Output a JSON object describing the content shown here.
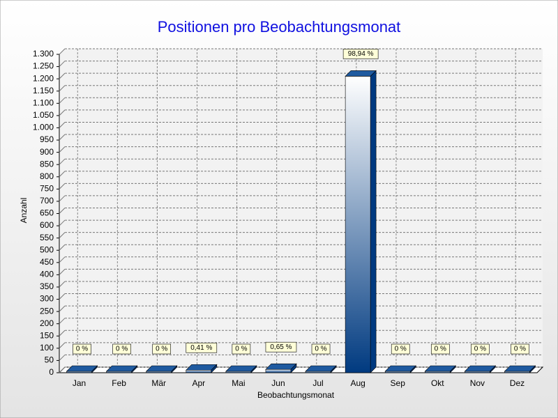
{
  "chart_data": {
    "type": "bar3d",
    "title": "Positionen pro Beobachtungsmonat",
    "xlabel": "Beobachtungsmonat",
    "ylabel": "Anzahl",
    "categories": [
      "Jan",
      "Feb",
      "Mär",
      "Apr",
      "Mai",
      "Jun",
      "Jul",
      "Aug",
      "Sep",
      "Okt",
      "Nov",
      "Dez"
    ],
    "values": [
      0,
      0,
      0,
      5,
      0,
      8,
      0,
      1205,
      0,
      0,
      0,
      0
    ],
    "percentage_labels": [
      "0 %",
      "0 %",
      "0 %",
      "0,41 %",
      "0 %",
      "0,65 %",
      "0 %",
      "98,94 %",
      "0 %",
      "0 %",
      "0 %",
      "0 %"
    ],
    "color": "#003a80",
    "ylim": [
      0,
      1300
    ],
    "yticks": [
      0,
      50,
      100,
      150,
      200,
      250,
      300,
      350,
      400,
      450,
      500,
      550,
      600,
      650,
      700,
      750,
      800,
      850,
      900,
      950,
      {
        "value": 1000,
        "label": "1.000"
      },
      {
        "value": 1050,
        "label": "1.050"
      },
      {
        "value": 1100,
        "label": "1.100"
      },
      {
        "value": 1150,
        "label": "1.150"
      },
      {
        "value": 1200,
        "label": "1.200"
      },
      {
        "value": 1250,
        "label": "1.250"
      },
      {
        "value": 1300,
        "label": "1.300"
      }
    ],
    "grid": true
  }
}
